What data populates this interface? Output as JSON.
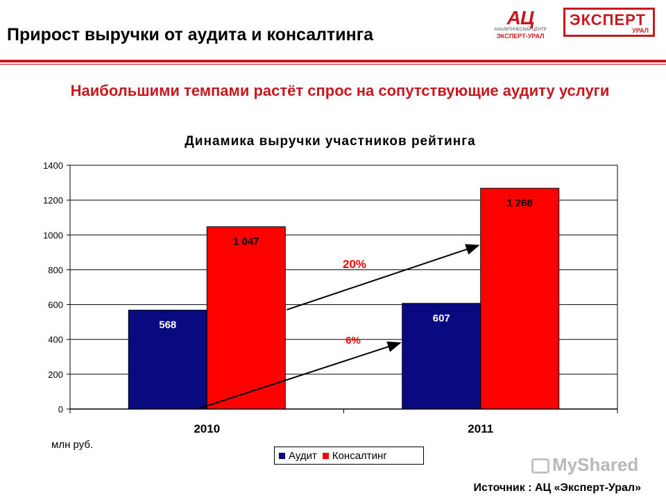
{
  "header": {
    "title": "Прирост выручки от аудита и консалтинга"
  },
  "logos": {
    "ac_mark": "АЦ",
    "ac_line1": "АНАЛИТИЧЕСКИЙ ЦЕНТР",
    "ac_line2": "ЭКСПЕРТ-УРАЛ",
    "expert_word": "ЭКСПЕРТ",
    "expert_sub": "УРАЛ"
  },
  "subtitle": "Наибольшими темпами растёт спрос на сопутствующие аудиту услуги",
  "unit_note": "млн руб.",
  "source": "Источник : АЦ «Эксперт-Урал»",
  "watermark": "MyShared",
  "colors": {
    "accent": "#c8171e",
    "audit": "#0a0a80",
    "consulting": "#ff0000"
  },
  "chart_data": {
    "type": "bar",
    "title": "Динамика выручки участников рейтинга",
    "categories": [
      "2010",
      "2011"
    ],
    "series": [
      {
        "name": "Аудит",
        "values": [
          568,
          607
        ],
        "labels": [
          "568",
          "607"
        ],
        "color": "#0a0a80",
        "label_color": "#ffffff"
      },
      {
        "name": "Консалтинг",
        "values": [
          1047,
          1268
        ],
        "labels": [
          "1 047",
          "1 268"
        ],
        "color": "#ff0000",
        "label_color": "#000000"
      }
    ],
    "ylim": [
      0,
      1400
    ],
    "yticks": [
      "0",
      "200",
      "400",
      "600",
      "800",
      "1000",
      "1200",
      "1400"
    ],
    "grid": true,
    "legend_position": "bottom",
    "annotations": [
      {
        "text": "20%",
        "series": "Консалтинг",
        "from": 1047,
        "to": 1268
      },
      {
        "text": "6%",
        "series": "Аудит",
        "from": 568,
        "to": 607
      }
    ]
  }
}
